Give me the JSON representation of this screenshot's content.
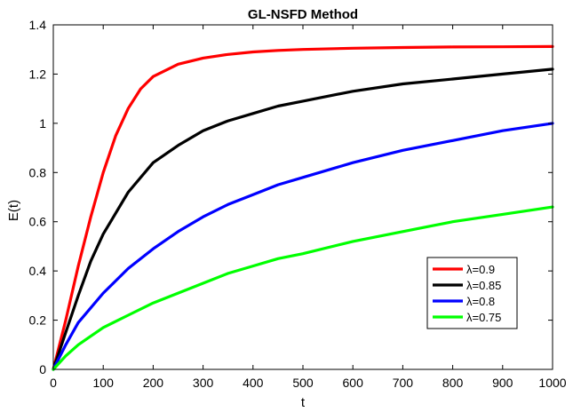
{
  "chart_data": {
    "type": "line",
    "title": "GL-NSFD Method",
    "xlabel": "t",
    "ylabel": "E(t)",
    "xlim": [
      0,
      1000
    ],
    "ylim": [
      0,
      1.4
    ],
    "xticks": [
      0,
      100,
      200,
      300,
      400,
      500,
      600,
      700,
      800,
      900,
      1000
    ],
    "yticks": [
      0,
      0.2,
      0.4,
      0.6,
      0.8,
      1,
      1.2,
      1.4
    ],
    "grid": false,
    "legend_position": "bottom-right",
    "series": [
      {
        "name": "λ=0.9",
        "color": "#ff0000",
        "x": [
          0,
          25,
          50,
          75,
          100,
          125,
          150,
          175,
          200,
          250,
          300,
          350,
          400,
          450,
          500,
          600,
          700,
          800,
          900,
          1000
        ],
        "y": [
          0,
          0.2,
          0.42,
          0.62,
          0.8,
          0.95,
          1.06,
          1.14,
          1.19,
          1.24,
          1.265,
          1.28,
          1.29,
          1.296,
          1.3,
          1.305,
          1.308,
          1.31,
          1.311,
          1.312
        ]
      },
      {
        "name": "λ=0.85",
        "color": "#000000",
        "x": [
          0,
          25,
          50,
          75,
          100,
          150,
          200,
          250,
          300,
          350,
          400,
          450,
          500,
          600,
          700,
          800,
          900,
          1000
        ],
        "y": [
          0,
          0.15,
          0.3,
          0.44,
          0.55,
          0.72,
          0.84,
          0.91,
          0.97,
          1.01,
          1.04,
          1.07,
          1.09,
          1.13,
          1.16,
          1.18,
          1.2,
          1.22
        ]
      },
      {
        "name": "λ=0.8",
        "color": "#0000ff",
        "x": [
          0,
          25,
          50,
          100,
          150,
          200,
          250,
          300,
          350,
          400,
          450,
          500,
          600,
          700,
          800,
          900,
          1000
        ],
        "y": [
          0,
          0.1,
          0.19,
          0.31,
          0.41,
          0.49,
          0.56,
          0.62,
          0.67,
          0.71,
          0.75,
          0.78,
          0.84,
          0.89,
          0.93,
          0.97,
          1.0
        ]
      },
      {
        "name": "λ=0.75",
        "color": "#00ff00",
        "x": [
          0,
          25,
          50,
          100,
          150,
          200,
          250,
          300,
          350,
          400,
          450,
          500,
          600,
          700,
          800,
          900,
          1000
        ],
        "y": [
          0,
          0.055,
          0.1,
          0.17,
          0.22,
          0.27,
          0.31,
          0.35,
          0.39,
          0.42,
          0.45,
          0.47,
          0.52,
          0.56,
          0.6,
          0.63,
          0.66
        ]
      }
    ]
  }
}
